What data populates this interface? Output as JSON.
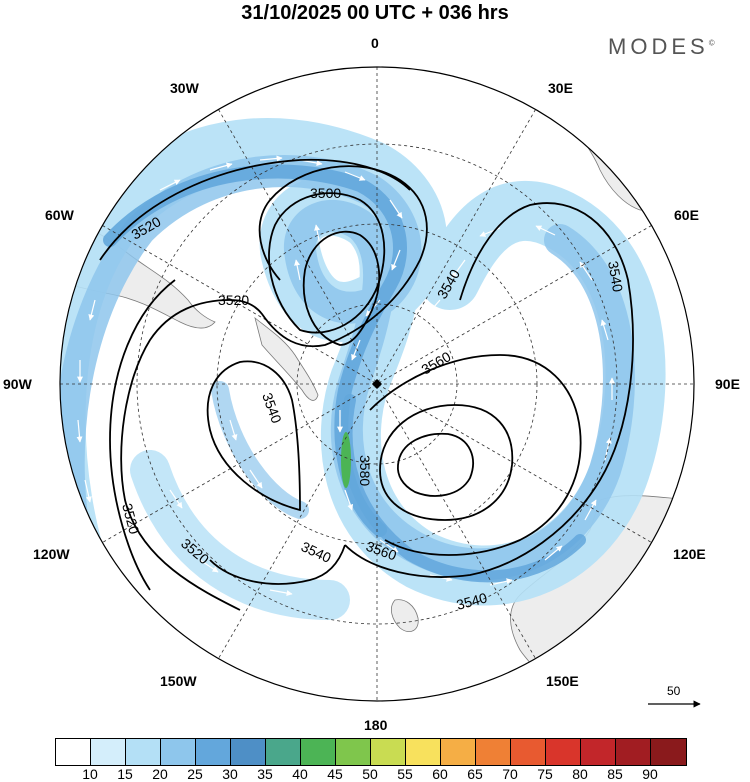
{
  "header": {
    "title": "31/10/2025  00 UTC  + 036 hrs",
    "logo": "MODES",
    "logo_mark": "©"
  },
  "map": {
    "projection": "polar stereographic (south pole)",
    "longitude_labels": {
      "top": "0",
      "top_right": "30E",
      "upper_right": "60E",
      "right": "90E",
      "lower_right": "120E",
      "bottom_right": "150E",
      "bottom": "180",
      "bottom_left": "150W",
      "lower_left": "120W",
      "left": "90W",
      "upper_left": "60W",
      "top_left": "30W"
    },
    "contour_labels": [
      "3520",
      "3500",
      "3520",
      "3540",
      "3540",
      "3560",
      "3540",
      "3580",
      "3520",
      "3520",
      "3540",
      "3560",
      "3540"
    ],
    "wind_scale": {
      "value": "50"
    }
  },
  "colorbar": {
    "levels": [
      "10",
      "15",
      "20",
      "25",
      "30",
      "35",
      "40",
      "45",
      "50",
      "55",
      "60",
      "65",
      "70",
      "75",
      "80",
      "85",
      "90"
    ],
    "colors": [
      "#ffffff",
      "#d4eefb",
      "#b4e0f6",
      "#8ec6ec",
      "#63a7dc",
      "#4e8fc6",
      "#4aa78b",
      "#4cb455",
      "#7fc64c",
      "#c9dc52",
      "#f8e15d",
      "#f5ae45",
      "#ef8035",
      "#e85a30",
      "#d9352b",
      "#c2262a",
      "#a11d22",
      "#8a1a1c"
    ]
  }
}
